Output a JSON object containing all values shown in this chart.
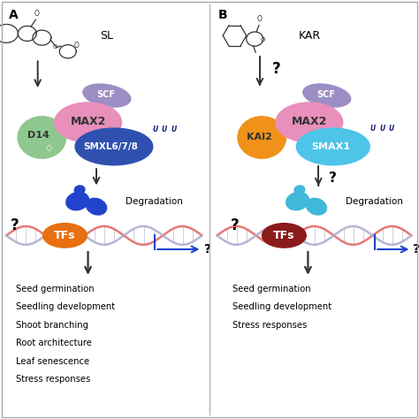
{
  "panel_A_label": "A",
  "panel_B_label": "B",
  "panel_A_molecule": "SL",
  "panel_B_molecule": "KAR",
  "SCF_color": "#9b8ec4",
  "MAX2_color": "#e88fbb",
  "D14_color": "#8ec88e",
  "SMXL_color": "#3050b0",
  "KAI2_color": "#f0921a",
  "SMAX1_color": "#4ec4e8",
  "TFs_A_color": "#e87010",
  "TFs_B_color": "#8b1a1a",
  "degradation_A_color": "#2244cc",
  "degradation_B_color": "#40b8d8",
  "arrow_color": "#333333",
  "blue_arrow_color": "#2244cc",
  "background_color": "#ffffff",
  "panel_A_outputs": [
    "Seed germination",
    "Seedling development",
    "Shoot branching",
    "Root architecture",
    "Leaf senescence",
    "Stress responses"
  ],
  "panel_B_outputs": [
    "Seed germination",
    "Seedling development",
    "Stress responses"
  ],
  "degradation_label": "Degradation",
  "question_mark": "?",
  "ubiquitin_color": "#1a237e",
  "border_color": "#aaaaaa",
  "divider_color": "#aaaaaa"
}
